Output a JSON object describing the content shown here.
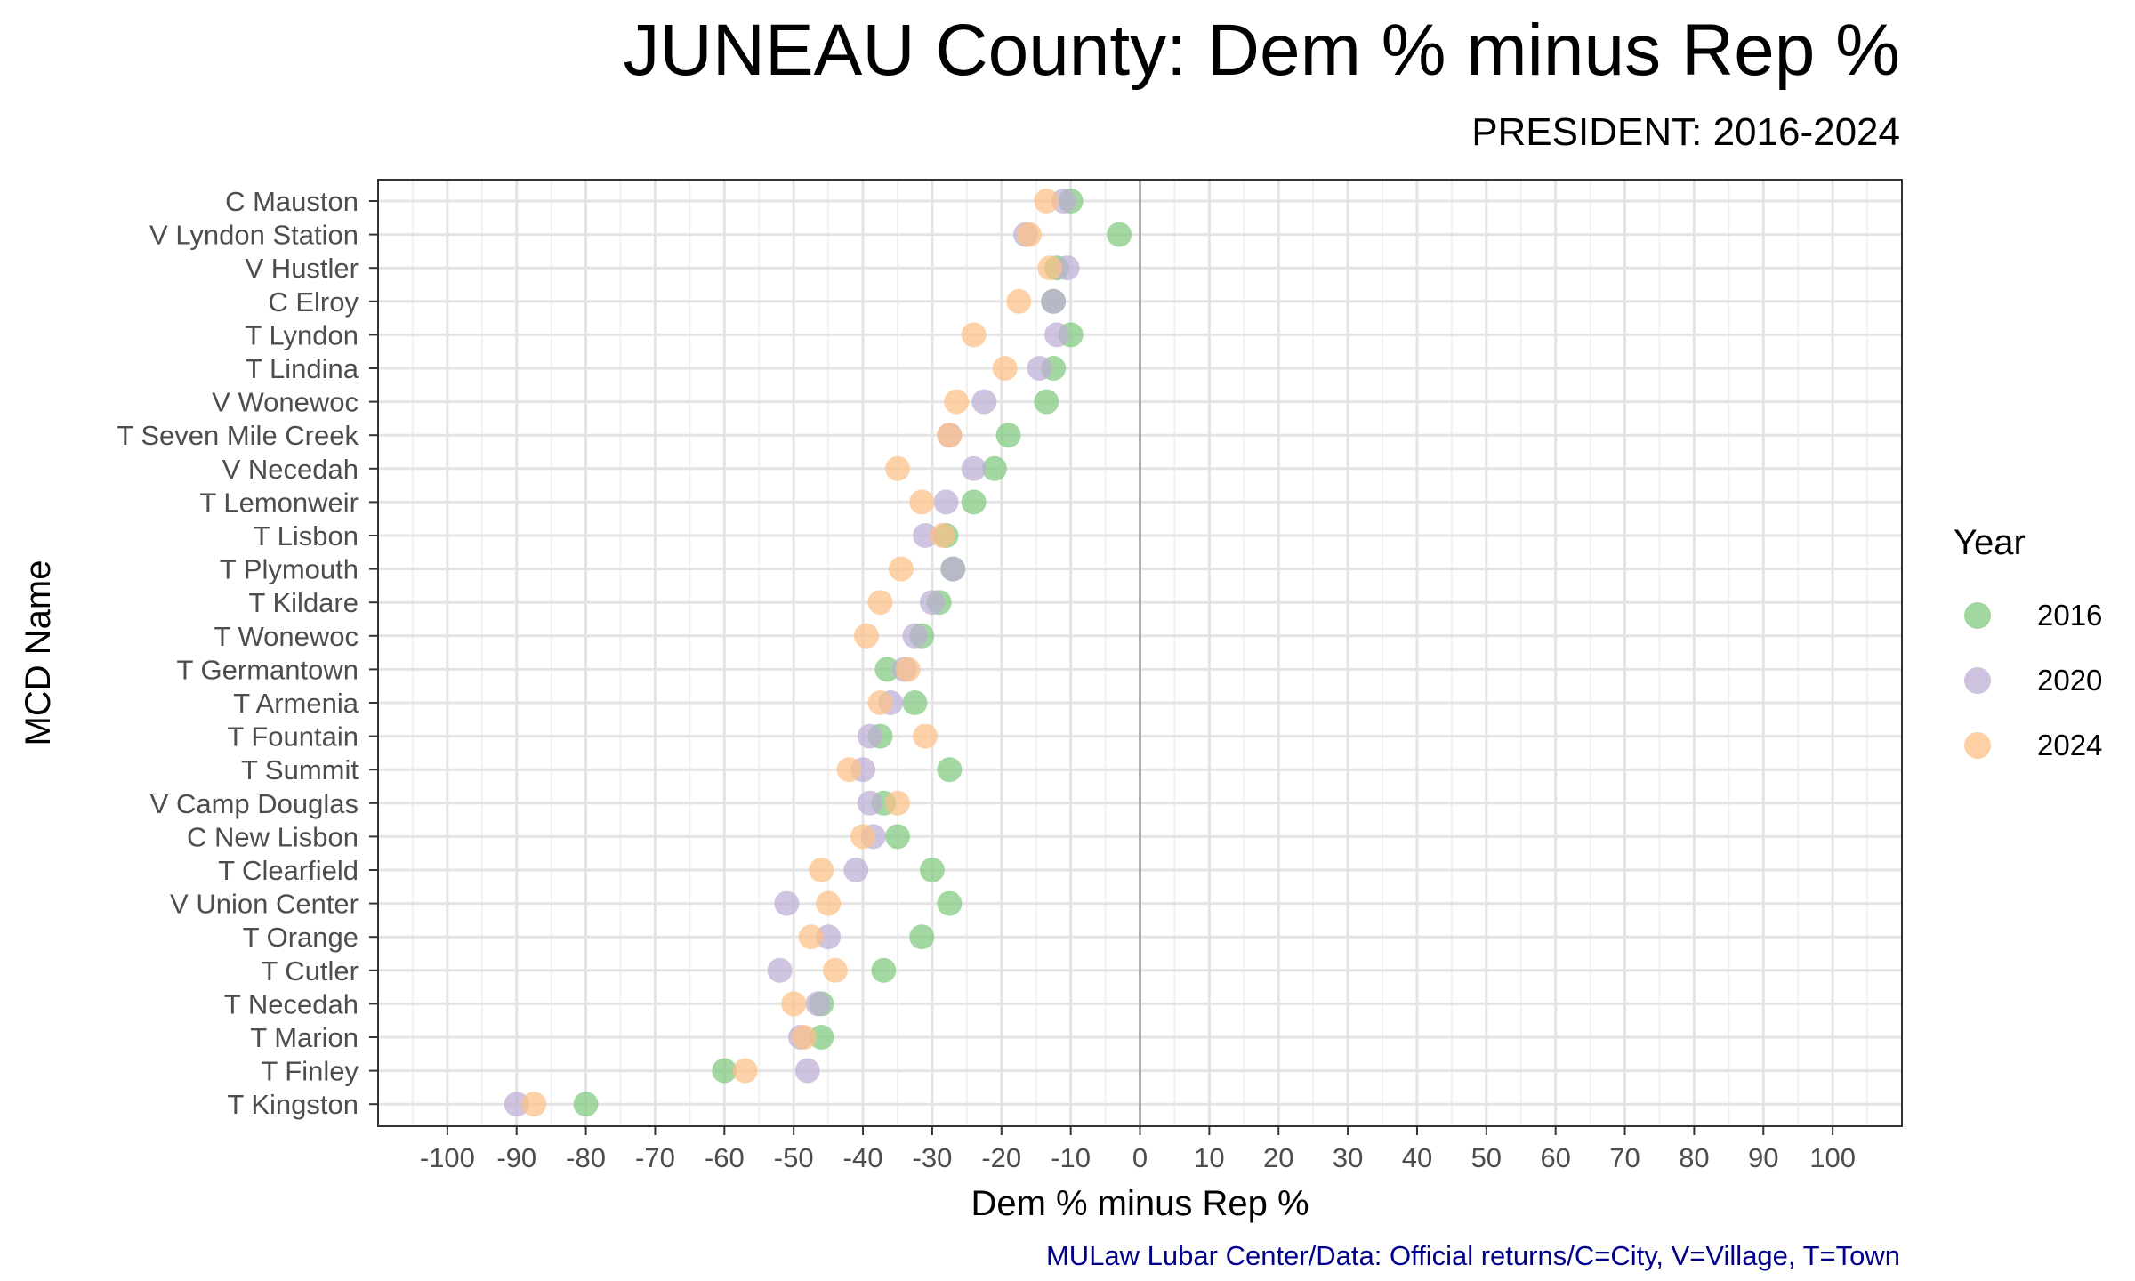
{
  "title": "JUNEAU County: Dem % minus Rep %",
  "subtitle": "PRESIDENT: 2016-2024",
  "caption": "MULaw Lubar Center/Data: Official returns/C=City, V=Village, T=Town",
  "legend": {
    "title": "Year",
    "items": [
      {
        "label": "2016",
        "color": "#7fc97f"
      },
      {
        "label": "2020",
        "color": "#beaed4"
      },
      {
        "label": "2024",
        "color": "#fdc086"
      }
    ]
  },
  "chart_data": {
    "type": "scatter",
    "xlabel": "Dem % minus Rep %",
    "ylabel": "MCD Name",
    "xlim": [
      -110,
      110
    ],
    "x_ticks": [
      -100,
      -90,
      -80,
      -70,
      -60,
      -50,
      -40,
      -30,
      -20,
      -10,
      0,
      10,
      20,
      30,
      40,
      50,
      60,
      70,
      80,
      90,
      100
    ],
    "grid": true,
    "reference_line_x": 0,
    "legend_position": "right",
    "categories": [
      "C Mauston",
      "V Lyndon Station",
      "V Hustler",
      "C Elroy",
      "T Lyndon",
      "T Lindina",
      "V Wonewoc",
      "T Seven Mile Creek",
      "V Necedah",
      "T Lemonweir",
      "T Lisbon",
      "T Plymouth",
      "T Kildare",
      "T Wonewoc",
      "T Germantown",
      "T Armenia",
      "T Fountain",
      "T Summit",
      "V Camp Douglas",
      "C New Lisbon",
      "T Clearfield",
      "V Union Center",
      "T Orange",
      "T Cutler",
      "T Necedah",
      "T Marion",
      "T Finley",
      "T Kingston"
    ],
    "series": [
      {
        "name": "2016",
        "color": "#7fc97f",
        "values": [
          -10,
          -3,
          -12,
          -12.5,
          -10,
          -12.5,
          -13.5,
          -19,
          -21,
          -24,
          -28,
          -27,
          -29,
          -31.5,
          -36.5,
          -32.5,
          -37.5,
          -27.5,
          -37,
          -35,
          -30,
          -27.5,
          -31.5,
          -37,
          -46,
          -46,
          -60,
          -80
        ]
      },
      {
        "name": "2020",
        "color": "#beaed4",
        "values": [
          -11,
          -16.5,
          -10.5,
          -12.5,
          -12,
          -14.5,
          -22.5,
          -27.5,
          -24,
          -28,
          -31,
          -27,
          -30,
          -32.5,
          -34,
          -36,
          -39,
          -40,
          -39,
          -38.5,
          -41,
          -51,
          -45,
          -52,
          -46.5,
          -49,
          -48,
          -90
        ]
      },
      {
        "name": "2024",
        "color": "#fdc086",
        "values": [
          -13.5,
          -16,
          -13,
          -17.5,
          -24,
          -19.5,
          -26.5,
          -27.5,
          -35,
          -31.5,
          -28.5,
          -34.5,
          -37.5,
          -39.5,
          -33.5,
          -37.5,
          -31,
          -42,
          -35,
          -40,
          -46,
          -45,
          -47.5,
          -44,
          -50,
          -48.5,
          -57,
          -87.5
        ]
      }
    ]
  }
}
